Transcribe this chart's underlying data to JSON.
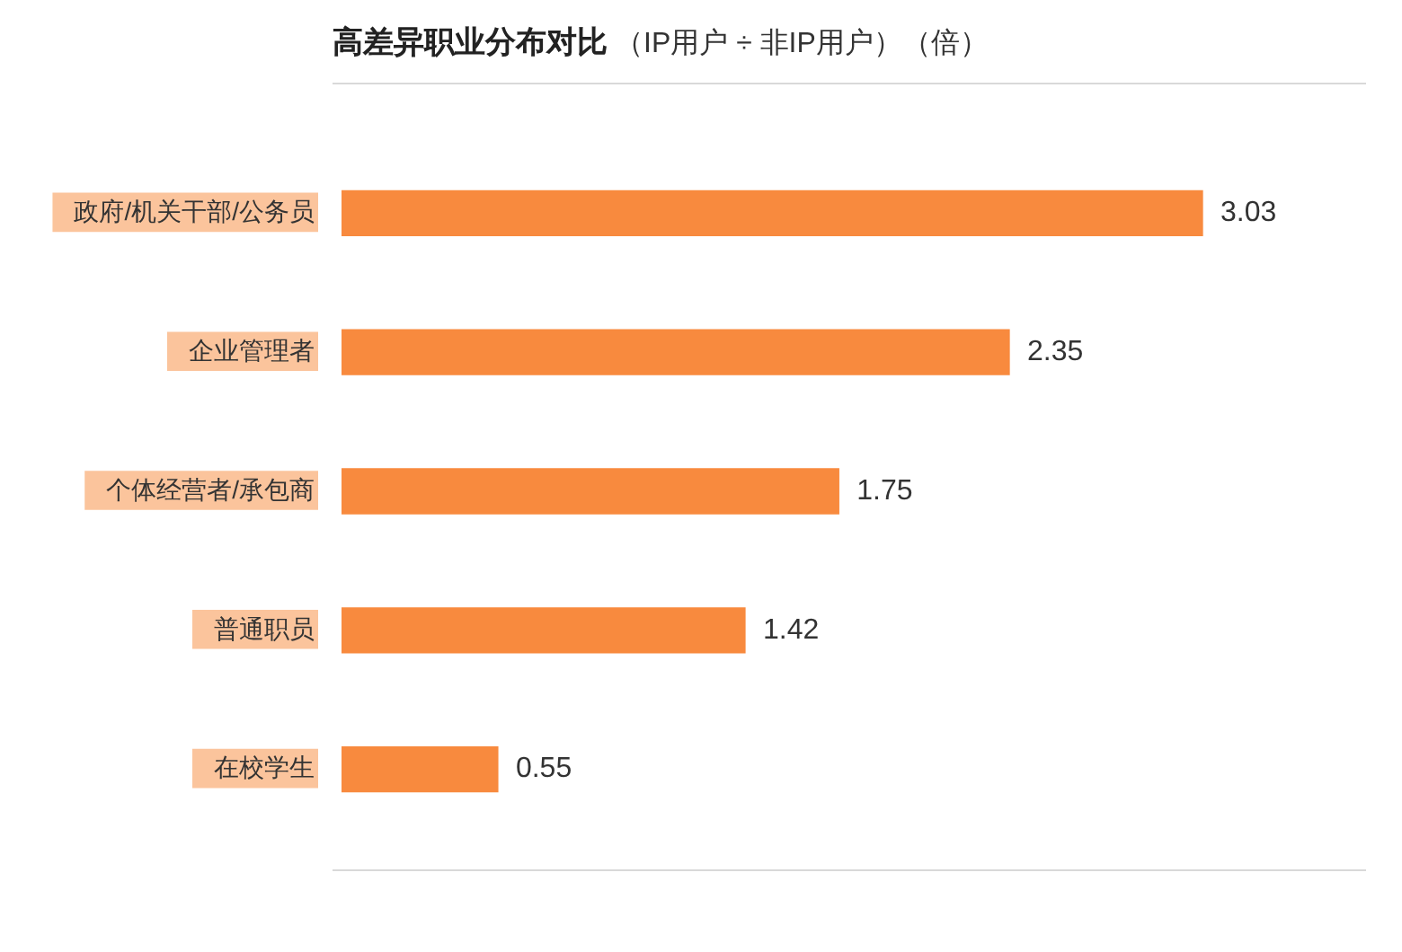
{
  "chart_data": {
    "type": "bar",
    "orientation": "horizontal",
    "title": "高差异职业分布对比",
    "subtitle": "（IP用户 ÷ 非IP用户）（倍）",
    "categories": [
      "政府/机关干部/公务员",
      "企业管理者",
      "个体经营者/承包商",
      "普通职员",
      "在校学生"
    ],
    "values": [
      3.03,
      2.35,
      1.75,
      1.42,
      0.55
    ],
    "color": "#f88a3e",
    "data_labels": true,
    "tick_labels": "y"
  }
}
